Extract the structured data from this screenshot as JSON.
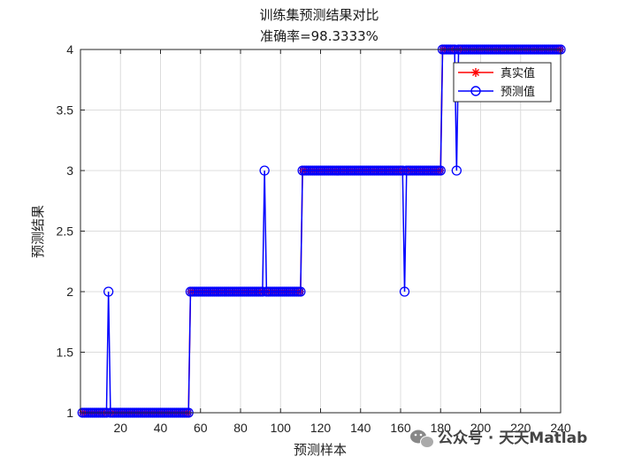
{
  "chart_data": {
    "type": "line",
    "title": "训练集预测结果对比",
    "subtitle": "准确率=98.3333%",
    "xlabel": "预测样本",
    "ylabel": "预测结果",
    "xlim": [
      0,
      240
    ],
    "ylim": [
      1,
      4
    ],
    "xticks": [
      20,
      40,
      60,
      80,
      100,
      120,
      140,
      160,
      180,
      200,
      220,
      240
    ],
    "yticks": [
      1,
      1.5,
      2,
      2.5,
      3,
      3.5,
      4
    ],
    "grid": true,
    "legend_position": "top-right",
    "series": [
      {
        "name": "真实值",
        "color": "#ff0000",
        "marker": "asterisk",
        "segments": [
          {
            "from": 1,
            "to": 54,
            "value": 1
          },
          {
            "from": 55,
            "to": 110,
            "value": 2
          },
          {
            "from": 111,
            "to": 180,
            "value": 3
          },
          {
            "from": 181,
            "to": 240,
            "value": 4
          }
        ]
      },
      {
        "name": "预测值",
        "color": "#0000ff",
        "marker": "circle",
        "segments": [
          {
            "from": 1,
            "to": 54,
            "value": 1
          },
          {
            "from": 55,
            "to": 110,
            "value": 2
          },
          {
            "from": 111,
            "to": 180,
            "value": 3
          },
          {
            "from": 181,
            "to": 240,
            "value": 4
          }
        ],
        "errors": [
          {
            "x": 14,
            "value": 2
          },
          {
            "x": 92,
            "value": 3
          },
          {
            "x": 162,
            "value": 2
          },
          {
            "x": 188,
            "value": 3
          }
        ]
      }
    ]
  },
  "watermark": {
    "text": "公众号 · 天天Matlab",
    "icon": "wechat-icon"
  }
}
